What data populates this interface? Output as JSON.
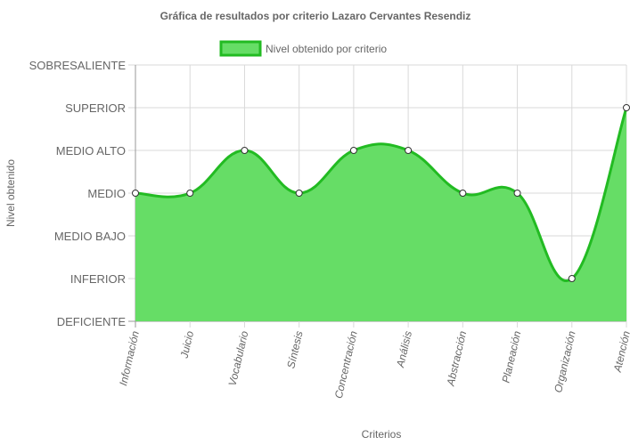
{
  "chart_data": {
    "type": "area",
    "title": "Gráfica de resultados por criterio Lazaro Cervantes Resendiz",
    "xlabel": "Criterios",
    "ylabel": "Nivel obtenido",
    "categories": [
      "Información",
      "Juicio",
      "Vocabulario",
      "Síntesis",
      "Concentración",
      "Análisis",
      "Abstracción",
      "Planeación",
      "Organización",
      "Atención"
    ],
    "y_levels": [
      "DEFICIENTE",
      "INFERIOR",
      "MEDIO BAJO",
      "MEDIO",
      "MEDIO ALTO",
      "SUPERIOR",
      "SOBRESALIENTE"
    ],
    "ylim": [
      0,
      6
    ],
    "series": [
      {
        "name": "Nivel obtenido por criterio",
        "values": [
          3,
          3,
          4,
          3,
          4,
          4,
          3,
          3,
          1,
          5
        ]
      }
    ],
    "legend": "top-center",
    "grid": true,
    "colors": {
      "fill": "#66dd66",
      "stroke": "#22bb22",
      "point_fill": "#ffffff",
      "point_stroke": "#333333"
    }
  }
}
